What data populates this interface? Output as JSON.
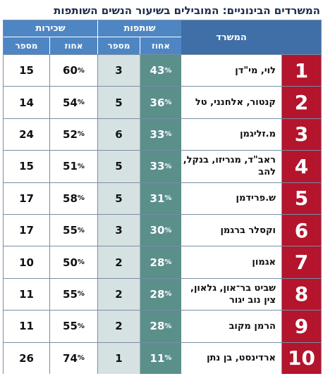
{
  "chart_data": {
    "type": "table",
    "title": "המשרדים הבינוניים: המובילים בשיעור הנשים השותפות",
    "columns": {
      "office": "המשרד",
      "partners_group": "שותפות",
      "hires_group": "שכירות",
      "pct": "אחוז",
      "count": "מספר"
    },
    "rows": [
      {
        "rank": "1",
        "name": "לוי, מי\"דן",
        "partners_pct": "43",
        "partners_num": "3",
        "hires_pct": "60",
        "hires_num": "15"
      },
      {
        "rank": "2",
        "name": "קנטור, אלחנני, טל",
        "partners_pct": "36",
        "partners_num": "5",
        "hires_pct": "54",
        "hires_num": "14"
      },
      {
        "rank": "3",
        "name": "מ.זליגמן",
        "partners_pct": "33",
        "partners_num": "6",
        "hires_pct": "52",
        "hires_num": "24"
      },
      {
        "rank": "4",
        "name": "ראב\"ד, מגריזו, בנקל, להב",
        "partners_pct": "33",
        "partners_num": "5",
        "hires_pct": "51",
        "hires_num": "15"
      },
      {
        "rank": "5",
        "name": "ש.פרידמן",
        "partners_pct": "31",
        "partners_num": "5",
        "hires_pct": "58",
        "hires_num": "17"
      },
      {
        "rank": "6",
        "name": "וקסלר ברגמן",
        "partners_pct": "30",
        "partners_num": "3",
        "hires_pct": "55",
        "hires_num": "17"
      },
      {
        "rank": "7",
        "name": "אגמון",
        "partners_pct": "28",
        "partners_num": "2",
        "hires_pct": "50",
        "hires_num": "10"
      },
      {
        "rank": "8",
        "name": "שביט בר־און, גלאון, צין נוב יגור",
        "partners_pct": "28",
        "partners_num": "2",
        "hires_pct": "55",
        "hires_num": "11"
      },
      {
        "rank": "9",
        "name": "הרמן מקוב",
        "partners_pct": "28",
        "partners_num": "2",
        "hires_pct": "55",
        "hires_num": "11"
      },
      {
        "rank": "10",
        "name": "ארדינסט, בן נתן",
        "partners_pct": "11",
        "partners_num": "1",
        "hires_pct": "74",
        "hires_num": "26"
      }
    ],
    "pct_symbol": "%"
  }
}
